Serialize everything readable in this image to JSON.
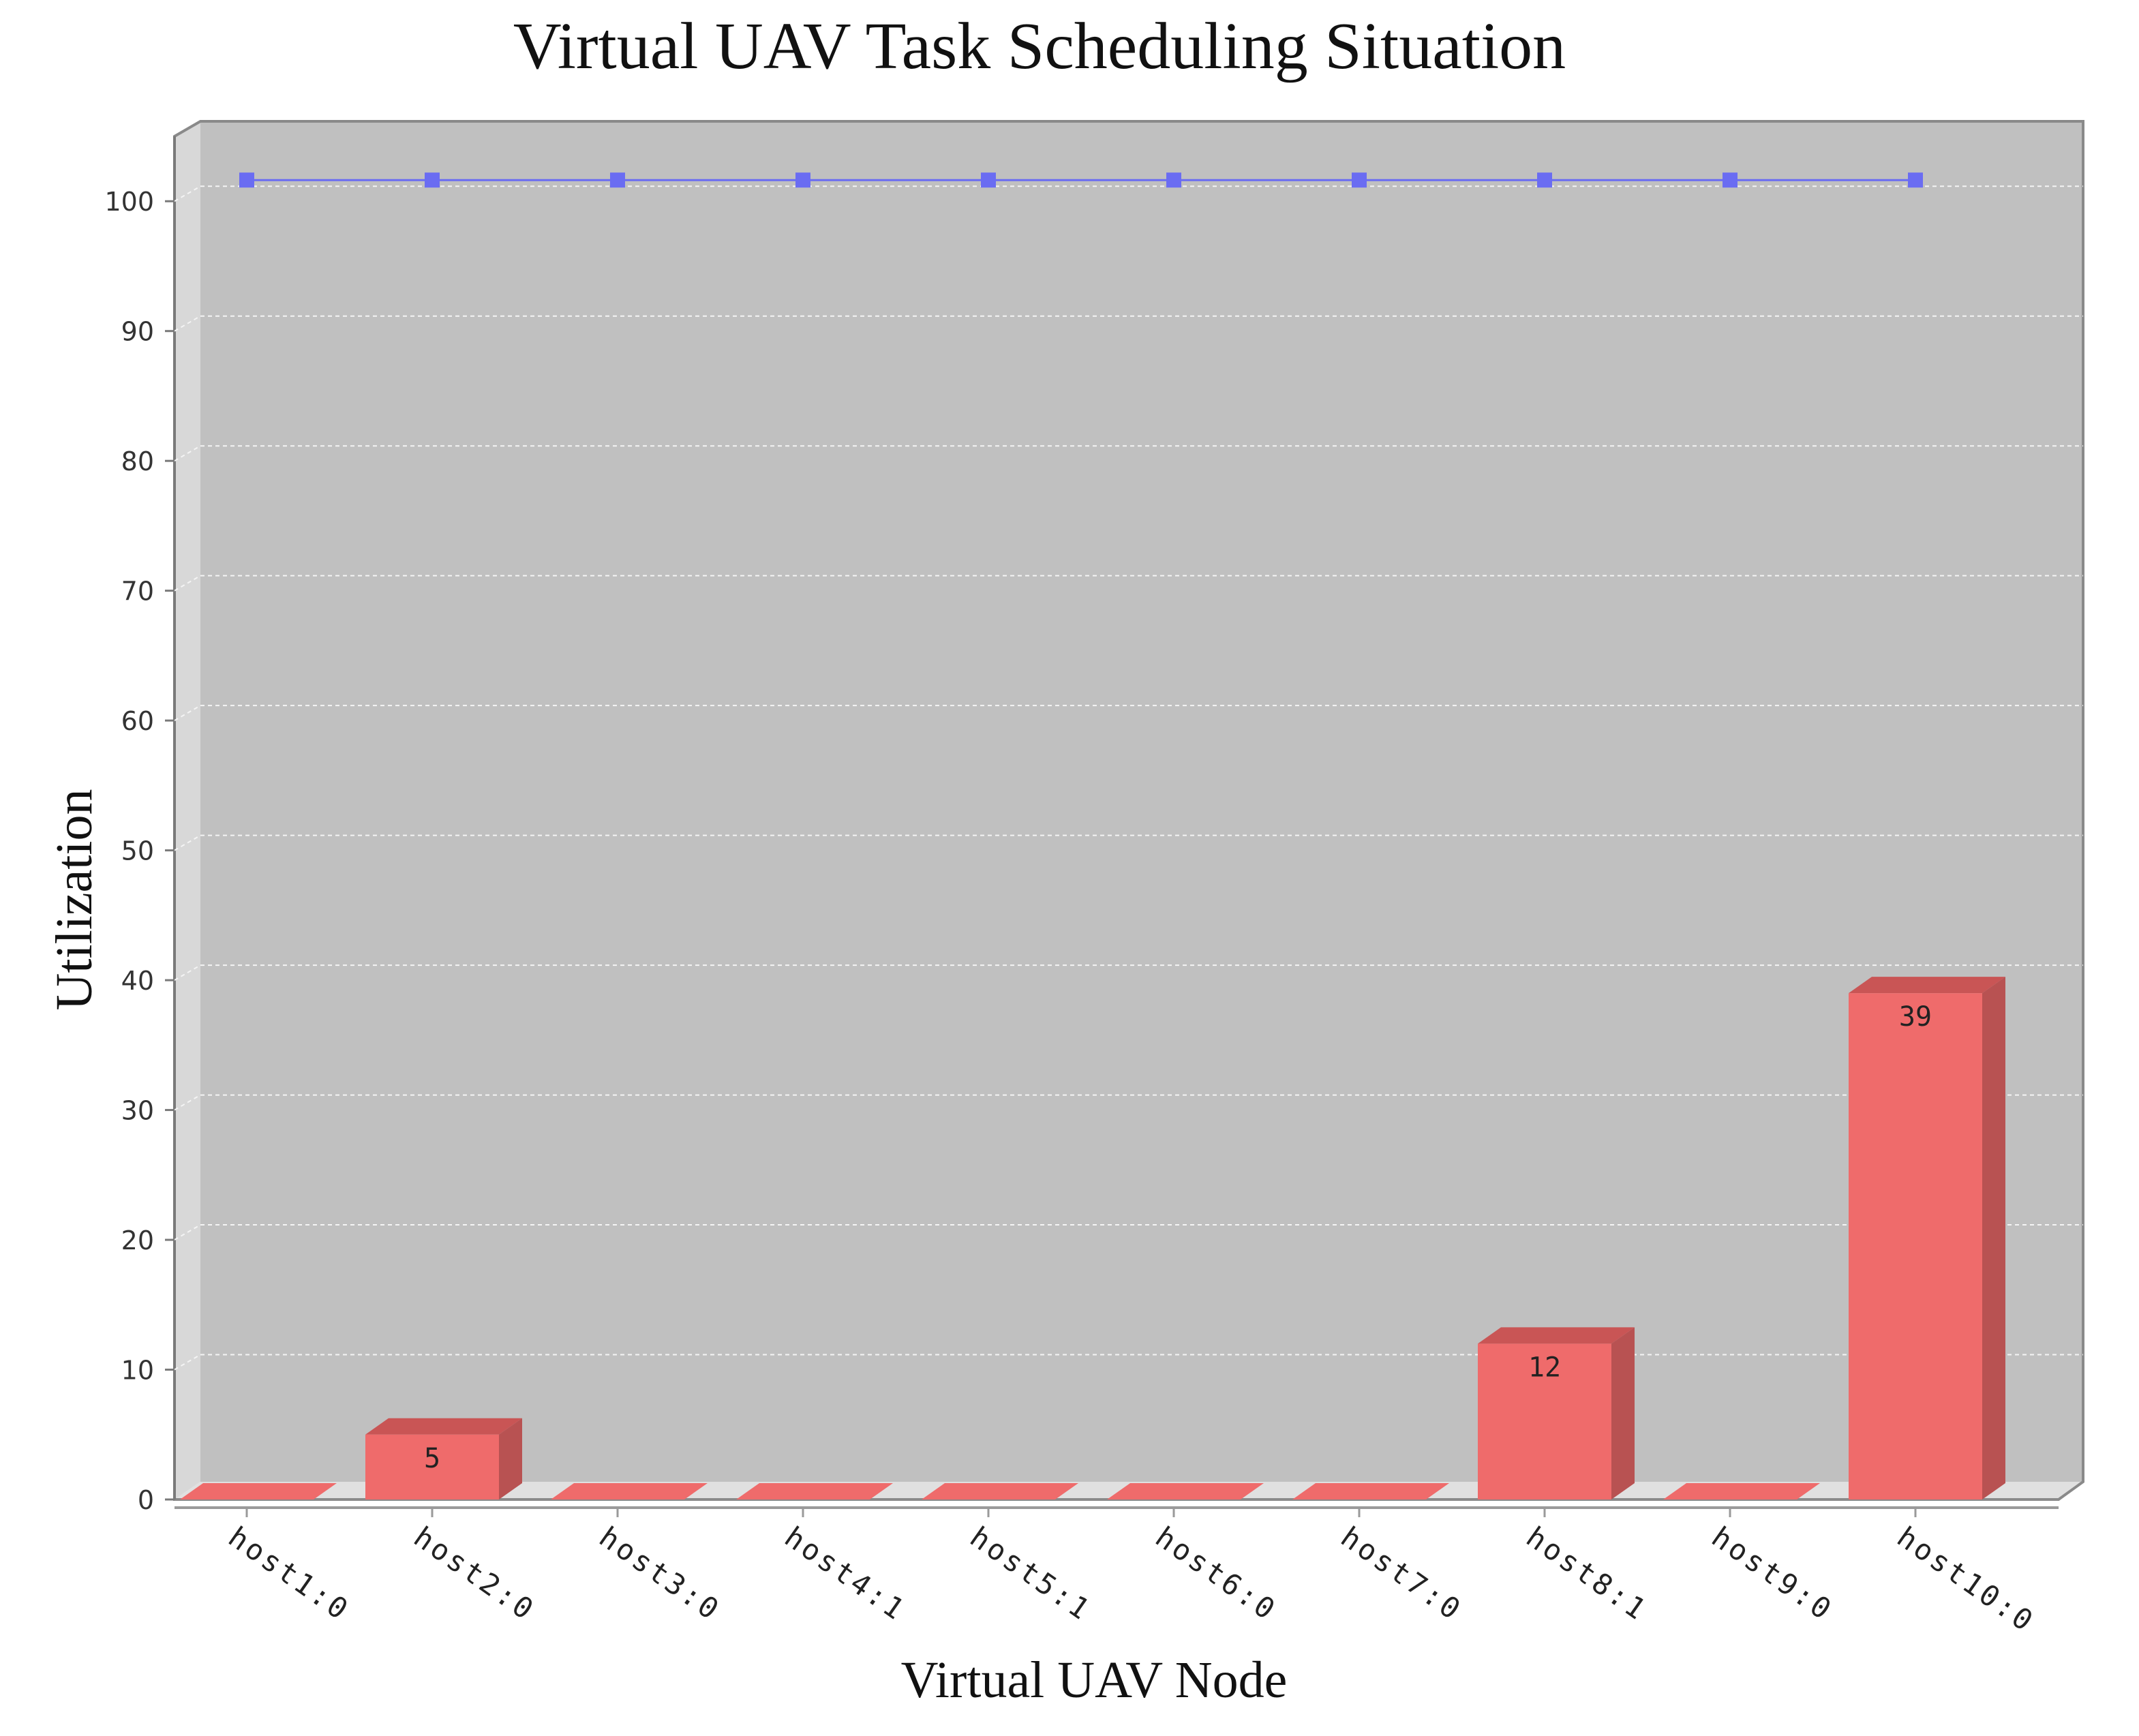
{
  "chart_data": {
    "type": "bar",
    "title": "Virtual UAV Task Scheduling Situation",
    "xlabel": "Virtual UAV Node",
    "ylabel": "Utilization",
    "categories": [
      "host1:0",
      "host2:0",
      "host3:0",
      "host4:1",
      "host5:1",
      "host6:0",
      "host7:0",
      "host8:1",
      "host9:0",
      "host10:0"
    ],
    "series": [
      {
        "values": [
          0,
          5,
          0,
          0,
          0,
          0,
          0,
          12,
          0,
          39
        ],
        "style": "3d-bar",
        "data_labels": [
          "",
          "5",
          "",
          "",
          "",
          "",
          "",
          "12",
          "",
          "39"
        ]
      },
      {
        "values": [
          101,
          101,
          101,
          101,
          101,
          101,
          101,
          101,
          101,
          101
        ],
        "style": "line-square-markers"
      }
    ],
    "ylim": [
      0,
      105
    ],
    "yticks": [
      "0",
      "10",
      "20",
      "30",
      "40",
      "50",
      "60",
      "70",
      "80",
      "90",
      "100"
    ],
    "grid": true,
    "legend": "none",
    "colors": {
      "bar_front": "#ef6b6b",
      "bar_top": "#c95555",
      "bar_side": "#b85252",
      "line": "#6a6cf2",
      "plot_bg": "#c0c0c0",
      "wall": "#d8d8d8",
      "floor": "#e0e0e0",
      "gridline": "#f4f4f4"
    }
  }
}
